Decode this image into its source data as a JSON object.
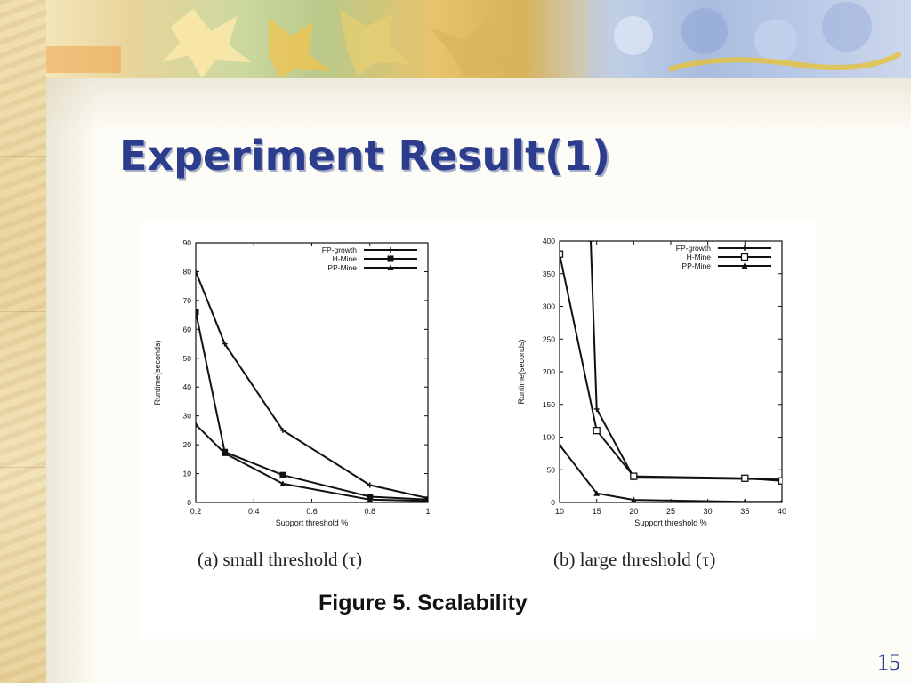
{
  "slide": {
    "title": "Experiment Result(1)",
    "page_number": "15",
    "figure_caption": "Figure 5. Scalability",
    "colors": {
      "title": "#2b3d8c",
      "accent_banner": "#e8c36a"
    }
  },
  "chart_data": [
    {
      "type": "line",
      "caption": "(a) small threshold (τ)",
      "xlabel": "Support threshold %",
      "ylabel": "Runtime(seconds)",
      "xlim": [
        0.2,
        1
      ],
      "ylim": [
        0,
        90
      ],
      "xticks": [
        "0.2",
        "0.4",
        "0.6",
        "0.8",
        "1"
      ],
      "yticks": [
        "0",
        "10",
        "20",
        "30",
        "40",
        "50",
        "60",
        "70",
        "80",
        "90"
      ],
      "legend_position": "top-right",
      "grid": false,
      "series": [
        {
          "name": "FP-growth",
          "marker": "plus",
          "points": [
            [
              0.2,
              80
            ],
            [
              0.3,
              55
            ],
            [
              0.5,
              25
            ],
            [
              0.8,
              6
            ],
            [
              1,
              1.5
            ]
          ]
        },
        {
          "name": "H-Mine",
          "marker": "square-filled",
          "points": [
            [
              0.2,
              66
            ],
            [
              0.3,
              17.5
            ],
            [
              0.5,
              9.5
            ],
            [
              0.8,
              2
            ],
            [
              1,
              1
            ]
          ]
        },
        {
          "name": "PP-Mine",
          "marker": "triangle",
          "points": [
            [
              0.2,
              27
            ],
            [
              0.3,
              17
            ],
            [
              0.5,
              6.5
            ],
            [
              0.8,
              1
            ],
            [
              1,
              0.5
            ]
          ]
        }
      ]
    },
    {
      "type": "line",
      "caption": "(b) large threshold (τ)",
      "xlabel": "Support threshold %",
      "ylabel": "Runtime(seconds)",
      "xlim": [
        10,
        40
      ],
      "ylim": [
        0,
        400
      ],
      "xticks": [
        "10",
        "15",
        "20",
        "25",
        "30",
        "35",
        "40"
      ],
      "yticks": [
        "0",
        "50",
        "100",
        "150",
        "200",
        "250",
        "300",
        "350",
        "400"
      ],
      "legend_position": "top-right",
      "grid": false,
      "series": [
        {
          "name": "FP-growth",
          "marker": "plus",
          "points": [
            [
              14.2,
              400
            ],
            [
              15,
              143
            ],
            [
              20,
              38
            ],
            [
              35,
              36
            ],
            [
              40,
              35
            ]
          ]
        },
        {
          "name": "H-Mine",
          "marker": "square-open",
          "points": [
            [
              10,
              380
            ],
            [
              15,
              110
            ],
            [
              20,
              40
            ],
            [
              35,
              37
            ],
            [
              40,
              33
            ]
          ]
        },
        {
          "name": "PP-Mine",
          "marker": "triangle",
          "points": [
            [
              10,
              88
            ],
            [
              15,
              14
            ],
            [
              20,
              4
            ],
            [
              35,
              1
            ],
            [
              40,
              1
            ]
          ]
        }
      ]
    }
  ]
}
